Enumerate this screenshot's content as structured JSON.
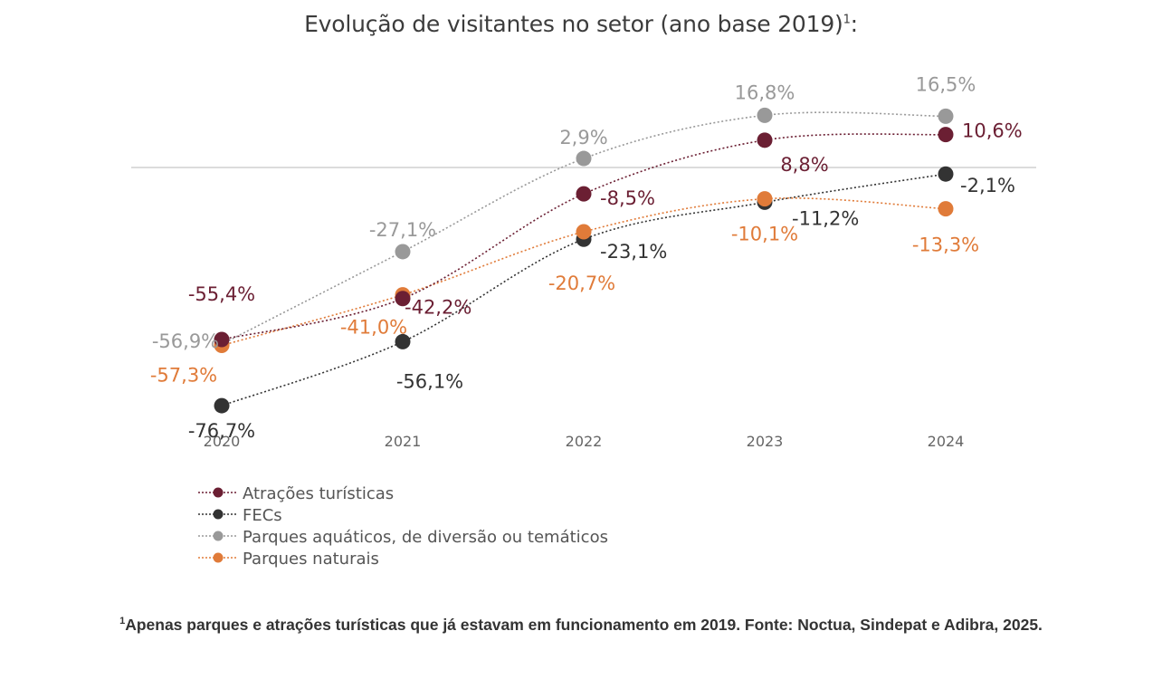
{
  "title": "Evolução de visitantes no setor (ano base 2019)",
  "title_superscript": "1",
  "title_suffix": ":",
  "footnote": {
    "marker": "1",
    "text": "Apenas parques e atrações turísticas que já estavam em funcionamento em 2019. Fonte: Noctua, Sindepat e Adibra, 2025."
  },
  "chart_data": {
    "type": "line",
    "title": "Evolução de visitantes no setor (ano base 2019)",
    "xlabel": "",
    "ylabel": "",
    "x": [
      "2020",
      "2021",
      "2022",
      "2023",
      "2024"
    ],
    "ylim": [
      -90,
      25
    ],
    "grid": false,
    "reference_line": 0,
    "legend_position": "bottom-left",
    "series": [
      {
        "name": "Atrações turísticas",
        "color": "#6b1f33",
        "values": [
          -55.4,
          -42.2,
          -8.5,
          8.8,
          10.6
        ],
        "labels": [
          "-55,4%",
          "-42,2%",
          "-8,5%",
          "8,8%",
          "10,6%"
        ]
      },
      {
        "name": "FECs",
        "color": "#333333",
        "values": [
          -76.7,
          -56.1,
          -23.1,
          -11.2,
          -2.1
        ],
        "labels": [
          "-76,7%",
          "-56,1%",
          "-23,1%",
          "-11,2%",
          "-2,1%"
        ]
      },
      {
        "name": "Parques aquáticos, de diversão ou temáticos",
        "color": "#999999",
        "values": [
          -56.9,
          -27.1,
          2.9,
          16.8,
          16.5
        ],
        "labels": [
          "-56,9%",
          "-27,1%",
          "2,9%",
          "16,8%",
          "16,5%"
        ]
      },
      {
        "name": "Parques naturais",
        "color": "#e07b39",
        "values": [
          -57.3,
          -41.0,
          -20.7,
          -10.1,
          -13.3
        ],
        "labels": [
          "-57,3%",
          "-41,0%",
          "-20,7%",
          "-10,1%",
          "-13,3%"
        ]
      }
    ]
  }
}
